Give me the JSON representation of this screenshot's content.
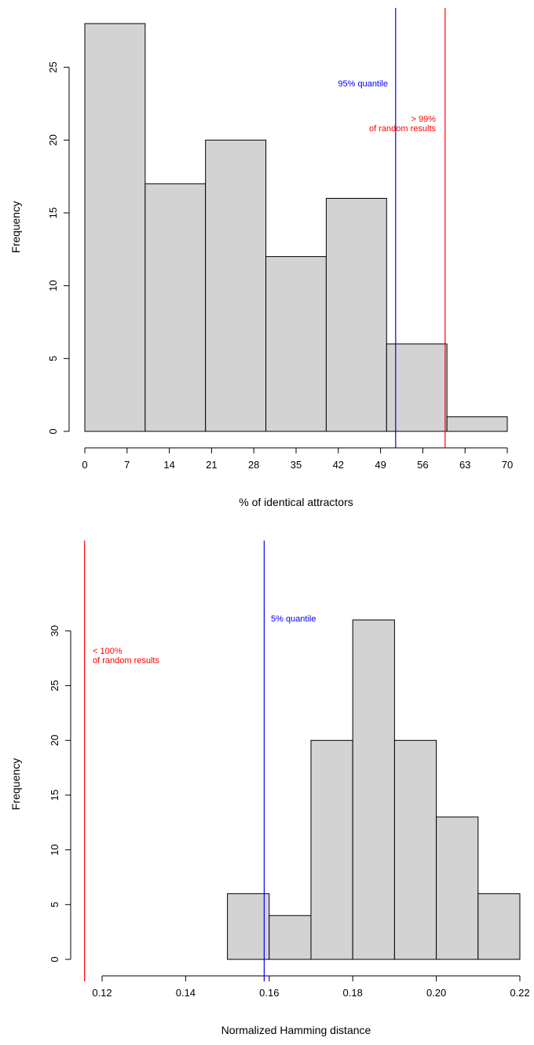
{
  "chart_data": [
    {
      "type": "bar",
      "xlabel": "% of identical attractors",
      "ylabel": "Frequency",
      "xlim": [
        0,
        70
      ],
      "ylim": [
        0,
        28
      ],
      "x_ticks": [
        0,
        7,
        14,
        21,
        28,
        35,
        42,
        49,
        56,
        63,
        70
      ],
      "y_ticks": [
        0,
        5,
        10,
        15,
        20,
        25
      ],
      "bins": [
        [
          0,
          10
        ],
        [
          10,
          20
        ],
        [
          20,
          30
        ],
        [
          30,
          40
        ],
        [
          40,
          50
        ],
        [
          50,
          60
        ],
        [
          60,
          70
        ]
      ],
      "values": [
        28,
        17,
        20,
        12,
        16,
        6,
        1
      ],
      "lines": [
        {
          "x": 51.5,
          "color": "#0000ff",
          "label": [
            "95% quantile"
          ]
        },
        {
          "x": 59.7,
          "color": "#ff0000",
          "label": [
            "> 99%",
            "of random results"
          ]
        }
      ]
    },
    {
      "type": "bar",
      "xlabel": "Normalized Hamming distance",
      "ylabel": "Frequency",
      "xlim": [
        0.12,
        0.22
      ],
      "ylim": [
        0,
        31
      ],
      "x_ticks": [
        "0.12",
        "0.14",
        "0.16",
        "0.18",
        "0.20",
        "0.22"
      ],
      "y_ticks": [
        0,
        5,
        10,
        15,
        20,
        25,
        30
      ],
      "bins": [
        [
          0.15,
          0.16
        ],
        [
          0.16,
          0.17
        ],
        [
          0.17,
          0.18
        ],
        [
          0.18,
          0.19
        ],
        [
          0.19,
          0.2
        ],
        [
          0.2,
          0.21
        ],
        [
          0.21,
          0.22
        ]
      ],
      "values": [
        6,
        4,
        20,
        31,
        20,
        13,
        6
      ],
      "lines": [
        {
          "x": 0.1588,
          "color": "#0000ff",
          "label": [
            "5% quantile"
          ]
        },
        {
          "x": 0.1158,
          "color": "#ff0000",
          "label": [
            "< 100%",
            "of random results"
          ]
        }
      ]
    }
  ]
}
